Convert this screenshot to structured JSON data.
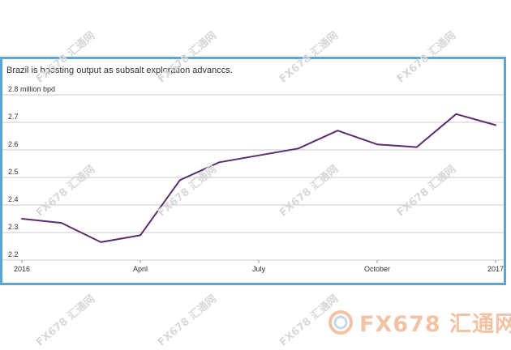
{
  "title": "Brazil is boosting output as subsalt exploration advanccs.",
  "watermark": {
    "text": "FX678 汇通网",
    "brand_text": "FX678 汇通网"
  },
  "colors": {
    "line": "#5b2c6f",
    "grid": "#c8c8c8",
    "frame": "#5aa6d6"
  },
  "chart_data": {
    "type": "line",
    "title": "Brazil is boosting output as subsalt exploration advanccs.",
    "ylabel": "million bpd",
    "x_ticks": [
      "2016",
      "April",
      "July",
      "October",
      "2017"
    ],
    "y_ticks": [
      "2.8 million bpd",
      "2.7",
      "2.6",
      "2.5",
      "2.4",
      "2.3",
      "2.2"
    ],
    "ylim": [
      2.2,
      2.8
    ],
    "xlim": [
      "2016-01",
      "2017-01"
    ],
    "grid": true,
    "series": [
      {
        "x": [
          "2016-01",
          "2016-02",
          "2016-03",
          "2016-04",
          "2016-05",
          "2016-06",
          "2016-07",
          "2016-08",
          "2016-09",
          "2016-10",
          "2016-11",
          "2016-12",
          "2017-01"
        ],
        "values": [
          2.35,
          2.335,
          2.265,
          2.29,
          2.49,
          2.555,
          2.58,
          2.605,
          2.67,
          2.62,
          2.61,
          2.73,
          2.69
        ]
      }
    ]
  }
}
